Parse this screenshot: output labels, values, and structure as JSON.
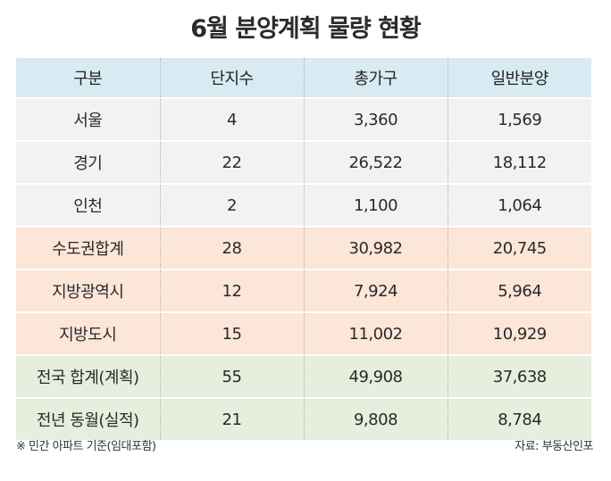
{
  "title": "6월 분양계획 물량 현황",
  "table": {
    "headers": [
      "구분",
      "단지수",
      "총가구",
      "일반분양"
    ],
    "rows": [
      [
        "서울",
        "4",
        "3,360",
        "1,569"
      ],
      [
        "경기",
        "22",
        "26,522",
        "18,112"
      ],
      [
        "인천",
        "2",
        "1,100",
        "1,064"
      ],
      [
        "수도권합계",
        "28",
        "30,982",
        "20,745"
      ],
      [
        "지방광역시",
        "12",
        "7,924",
        "5,964"
      ],
      [
        "지방도시",
        "15",
        "11,002",
        "10,929"
      ],
      [
        "전국 합계(계획)",
        "55",
        "49,908",
        "37,638"
      ],
      [
        "전년 동월(실적)",
        "21",
        "9,808",
        "8,784"
      ]
    ]
  },
  "footnote": "※ 민간 아파트 기준(임대포함)",
  "source": "자료: 부동산인포",
  "colors": {
    "header_bg": "#d8ebf2",
    "city_bg": "#f2f2f2",
    "metro_bg": "#fbe6d8",
    "total_bg": "#e6eedd"
  }
}
